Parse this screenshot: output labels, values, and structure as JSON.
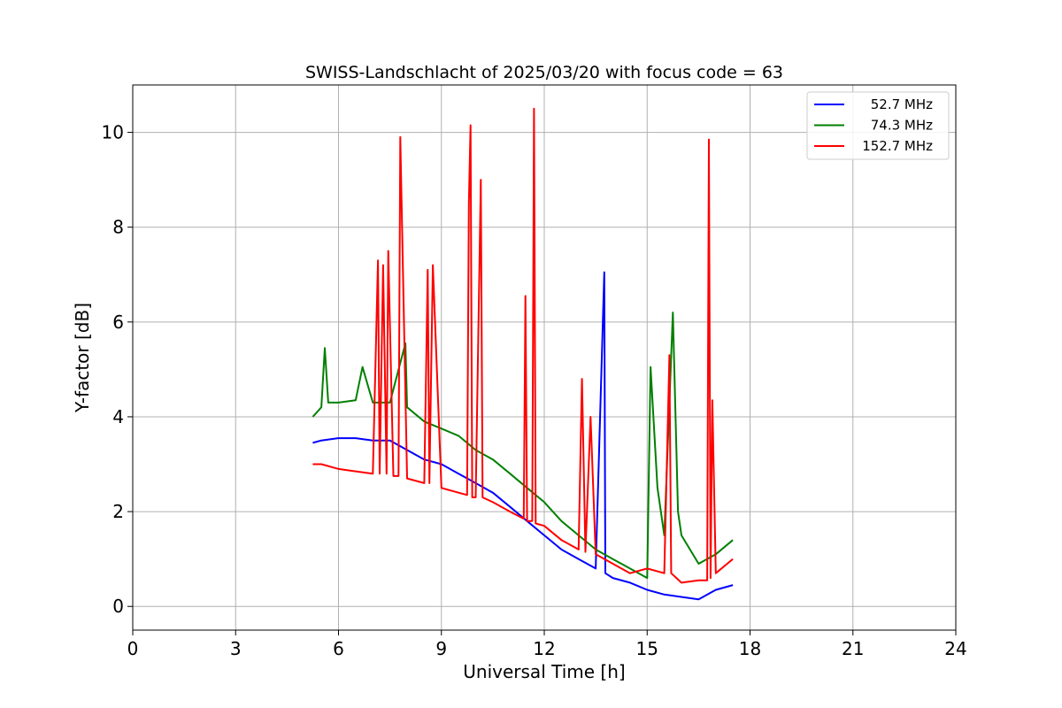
{
  "chart_data": {
    "type": "line",
    "title": "SWISS-Landschlacht of 2025/03/20 with focus code = 63",
    "xlabel": "Universal Time [h]",
    "ylabel": "Y-factor [dB]",
    "xlim": [
      0,
      24
    ],
    "ylim": [
      -0.5,
      11
    ],
    "xticks": [
      0,
      3,
      6,
      9,
      12,
      15,
      18,
      21,
      24
    ],
    "xtick_labels": [
      "0",
      "3",
      "6",
      "9",
      "12",
      "15",
      "18",
      "21",
      "24"
    ],
    "yticks": [
      0,
      2,
      4,
      6,
      8,
      10
    ],
    "ytick_labels": [
      "0",
      "2",
      "4",
      "6",
      "8",
      "10"
    ],
    "grid": true,
    "legend_position": "top-right",
    "series": [
      {
        "name": "52.7 MHz",
        "color": "#0000ff",
        "x": [
          5.25,
          5.5,
          6.0,
          6.5,
          7.0,
          7.5,
          8.0,
          8.5,
          9.0,
          9.5,
          10.0,
          10.5,
          11.0,
          11.5,
          12.0,
          12.5,
          13.0,
          13.5,
          13.75,
          13.78,
          14.0,
          14.5,
          15.0,
          15.5,
          16.0,
          16.5,
          17.0,
          17.5
        ],
        "y": [
          3.45,
          3.5,
          3.55,
          3.55,
          3.5,
          3.5,
          3.3,
          3.1,
          3.0,
          2.8,
          2.6,
          2.4,
          2.1,
          1.8,
          1.5,
          1.2,
          1.0,
          0.8,
          7.05,
          0.7,
          0.6,
          0.5,
          0.35,
          0.25,
          0.2,
          0.15,
          0.35,
          0.45
        ]
      },
      {
        "name": "74.3 MHz",
        "color": "#008000",
        "x": [
          5.25,
          5.5,
          5.6,
          5.7,
          6.0,
          6.5,
          6.7,
          7.0,
          7.5,
          7.95,
          8.0,
          8.5,
          9.0,
          9.5,
          10.0,
          10.5,
          11.0,
          11.5,
          12.0,
          12.5,
          13.0,
          13.5,
          14.0,
          14.5,
          15.0,
          15.1,
          15.3,
          15.5,
          15.75,
          15.9,
          16.0,
          16.5,
          17.0,
          17.5
        ],
        "y": [
          4.0,
          4.2,
          5.45,
          4.3,
          4.3,
          4.35,
          5.05,
          4.3,
          4.3,
          5.55,
          4.2,
          3.9,
          3.75,
          3.6,
          3.3,
          3.1,
          2.8,
          2.5,
          2.2,
          1.8,
          1.5,
          1.2,
          1.0,
          0.8,
          0.6,
          5.05,
          2.5,
          1.5,
          6.2,
          2.0,
          1.5,
          0.9,
          1.1,
          1.4
        ]
      },
      {
        "name": "152.7 MHz",
        "color": "#ff0000",
        "x": [
          5.25,
          5.5,
          6.0,
          6.5,
          7.0,
          7.15,
          7.2,
          7.3,
          7.4,
          7.45,
          7.6,
          7.75,
          7.8,
          8.0,
          8.5,
          8.6,
          8.65,
          8.75,
          9.0,
          9.5,
          9.75,
          9.8,
          9.85,
          9.9,
          10.0,
          10.15,
          10.2,
          10.5,
          11.0,
          11.4,
          11.45,
          11.5,
          11.65,
          11.7,
          11.75,
          12.0,
          12.5,
          13.0,
          13.1,
          13.2,
          13.35,
          13.5,
          14.0,
          14.5,
          15.0,
          15.5,
          15.65,
          15.7,
          16.0,
          16.5,
          16.75,
          16.8,
          16.85,
          16.9,
          17.0,
          17.5
        ],
        "y": [
          3.0,
          3.0,
          2.9,
          2.85,
          2.8,
          7.3,
          2.8,
          7.2,
          2.8,
          7.5,
          2.75,
          2.75,
          9.9,
          2.7,
          2.6,
          7.1,
          2.6,
          7.2,
          2.5,
          2.4,
          2.35,
          8.5,
          10.15,
          2.3,
          2.3,
          9.0,
          2.3,
          2.2,
          2.0,
          1.85,
          6.55,
          1.8,
          1.8,
          10.5,
          1.75,
          1.7,
          1.4,
          1.2,
          4.8,
          1.15,
          4.0,
          1.1,
          0.9,
          0.7,
          0.8,
          0.7,
          5.3,
          0.7,
          0.5,
          0.55,
          0.55,
          9.85,
          0.6,
          4.35,
          0.7,
          1.0
        ]
      }
    ]
  }
}
